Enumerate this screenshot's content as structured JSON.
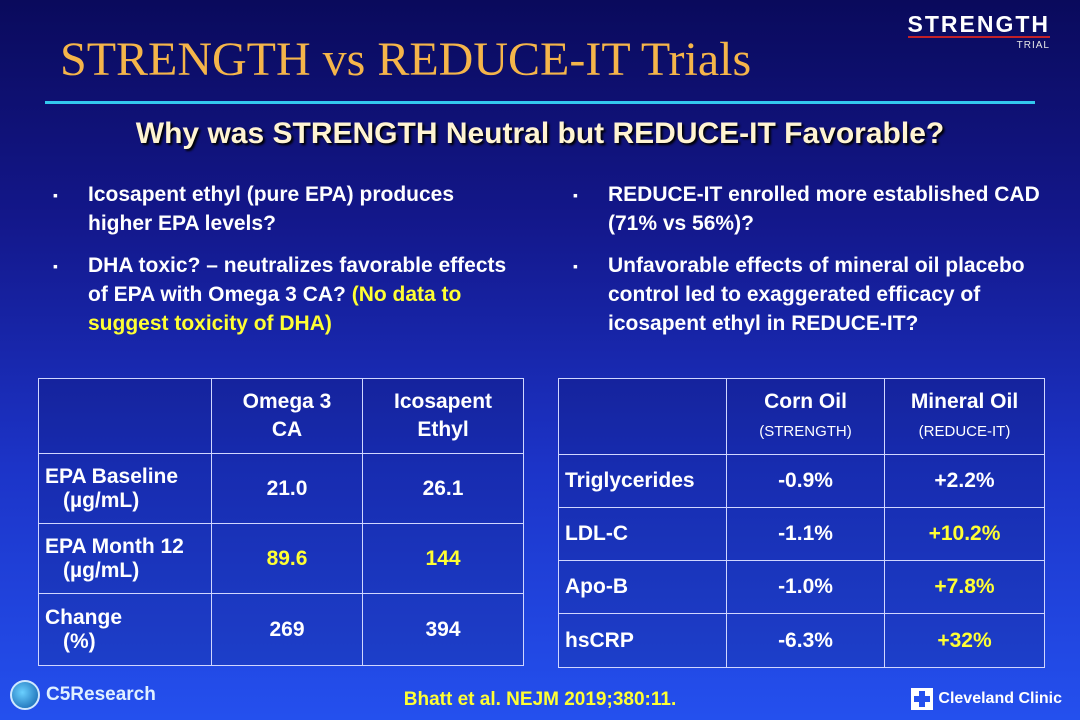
{
  "header": {
    "title": "STRENGTH vs REDUCE-IT Trials",
    "logo_text": "STRENGTH",
    "logo_sub": "TRIAL",
    "subtitle": "Why was STRENGTH Neutral but REDUCE-IT Favorable?"
  },
  "left_bullets": [
    {
      "text": "Icosapent ethyl (pure EPA) produces higher EPA levels?"
    },
    {
      "text": "DHA toxic? – neutralizes favorable effects of EPA with Omega 3 CA?",
      "highlight": "(No data to suggest toxicity of DHA)"
    }
  ],
  "right_bullets": [
    {
      "text": "REDUCE-IT enrolled more established CAD (71% vs 56%)?"
    },
    {
      "text": "Unfavorable effects of mineral oil placebo control led to exaggerated efficacy of icosapent ethyl in REDUCE-IT?"
    }
  ],
  "bullet_marker": "▪",
  "table_epa": {
    "col1_line1": "Omega 3",
    "col1_line2": "CA",
    "col2_line1": "Icosapent",
    "col2_line2": "Ethyl",
    "rows": [
      {
        "label": "EPA Baseline",
        "unit": "(µg/mL)",
        "v1": "21.0",
        "v2": "26.1"
      },
      {
        "label": "EPA Month 12",
        "unit": "(µg/mL)",
        "v1": "89.6",
        "v2": "144"
      },
      {
        "label": "Change",
        "unit": "(%)",
        "v1": "269",
        "v2": "394"
      }
    ]
  },
  "table_oil": {
    "col1_line1": "Corn Oil",
    "col1_line2": "(STRENGTH)",
    "col2_line1": "Mineral Oil",
    "col2_line2": "(REDUCE-IT)",
    "rows": [
      {
        "label": "Triglycerides",
        "v1": "-0.9%",
        "v2": "+2.2%"
      },
      {
        "label": "LDL-C",
        "v1": "-1.1%",
        "v2": "+10.2%"
      },
      {
        "label": "Apo-B",
        "v1": "-1.0%",
        "v2": "+7.8%"
      },
      {
        "label": "hsCRP",
        "v1": "-6.3%",
        "v2": "+32%"
      }
    ]
  },
  "footer": {
    "citation": "Bhatt et al.  NEJM 2019;380:11.",
    "left_logo": "C5Research",
    "right_logo": "Cleveland Clinic"
  },
  "colors": {
    "title": "#f5b54a",
    "highlight": "#ffff33",
    "rule": "#33c8ee",
    "background_top": "#0a0a5c",
    "background_bottom": "#2450ee"
  }
}
